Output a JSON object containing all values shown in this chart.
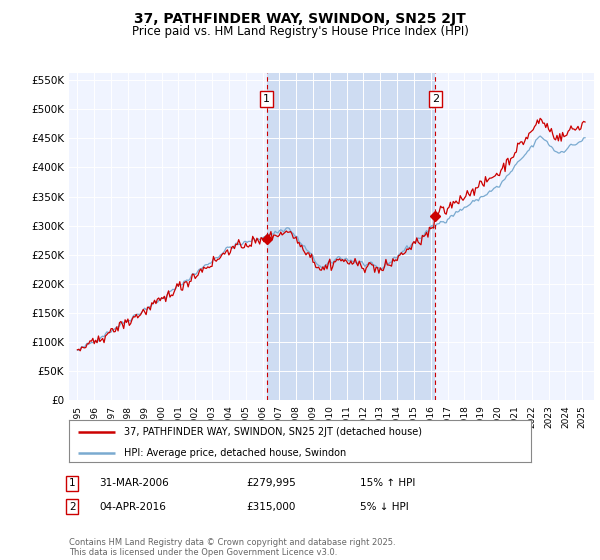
{
  "title": "37, PATHFINDER WAY, SWINDON, SN25 2JT",
  "subtitle": "Price paid vs. HM Land Registry's House Price Index (HPI)",
  "ylim": [
    0,
    562500
  ],
  "yticks": [
    0,
    50000,
    100000,
    150000,
    200000,
    250000,
    300000,
    350000,
    400000,
    450000,
    500000,
    550000
  ],
  "ytick_labels": [
    "£0",
    "£50K",
    "£100K",
    "£150K",
    "£200K",
    "£250K",
    "£300K",
    "£350K",
    "£400K",
    "£450K",
    "£500K",
    "£550K"
  ],
  "plot_bg": "#f0f4ff",
  "hpi_color": "#7aaad0",
  "price_color": "#cc0000",
  "shade_color": "#c8d8f0",
  "sale1_year": 2006.25,
  "sale1_price": 279995,
  "sale2_year": 2016.27,
  "sale2_price": 315000,
  "legend_property": "37, PATHFINDER WAY, SWINDON, SN25 2JT (detached house)",
  "legend_hpi": "HPI: Average price, detached house, Swindon",
  "note1_date": "31-MAR-2006",
  "note1_price": "£279,995",
  "note1_hpi": "15% ↑ HPI",
  "note2_date": "04-APR-2016",
  "note2_price": "£315,000",
  "note2_hpi": "5% ↓ HPI",
  "footer": "Contains HM Land Registry data © Crown copyright and database right 2025.\nThis data is licensed under the Open Government Licence v3.0."
}
